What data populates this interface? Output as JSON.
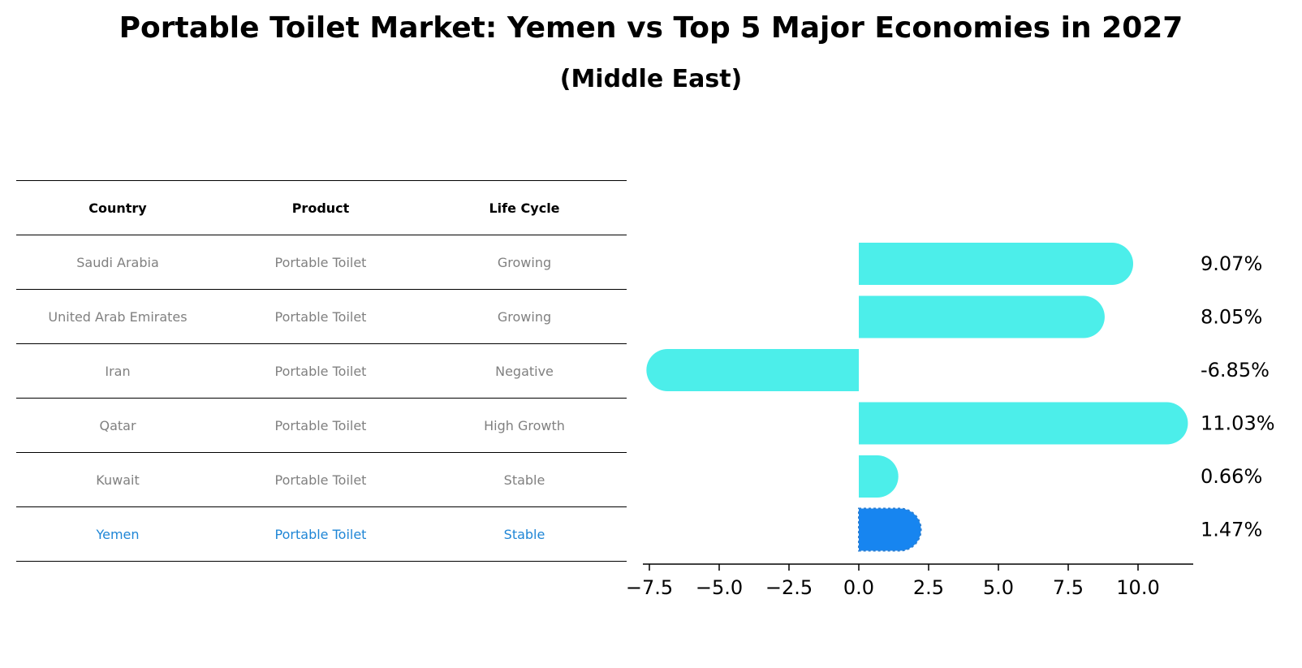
{
  "chart_data": {
    "type": "bar",
    "orientation": "horizontal",
    "title": "Portable Toilet Market: Yemen vs Top 5 Major Economies in 2027",
    "subtitle": "(Middle East)",
    "table": {
      "columns": [
        "Country",
        "Product",
        "Life Cycle"
      ],
      "rows": [
        [
          "Saudi Arabia",
          "Portable Toilet",
          "Growing"
        ],
        [
          "United Arab Emirates",
          "Portable Toilet",
          "Growing"
        ],
        [
          "Iran",
          "Portable Toilet",
          "Negative"
        ],
        [
          "Qatar",
          "Portable Toilet",
          "High Growth"
        ],
        [
          "Kuwait",
          "Portable Toilet",
          "Stable"
        ],
        [
          "Yemen",
          "Portable Toilet",
          "Stable"
        ]
      ],
      "highlight_row": 5
    },
    "categories": [
      "Saudi Arabia",
      "United Arab Emirates",
      "Iran",
      "Qatar",
      "Kuwait",
      "Yemen"
    ],
    "values": [
      9.07,
      8.05,
      -6.85,
      11.03,
      0.66,
      1.47
    ],
    "value_labels": [
      "9.07%",
      "8.05%",
      "-6.85%",
      "11.03%",
      "0.66%",
      "1.47%"
    ],
    "xlim": [
      -7.5,
      12
    ],
    "xticks": [
      -7.5,
      -5.0,
      -2.5,
      0.0,
      2.5,
      5.0,
      7.5,
      10.0
    ],
    "xtick_labels": [
      "−7.5",
      "−5.0",
      "−2.5",
      "0.0",
      "2.5",
      "5.0",
      "7.5",
      "10.0"
    ],
    "colors": {
      "default": "#4ceeea",
      "highlight": "#1785f0",
      "highlight_text": "#1f86d6",
      "table_text": "#808080"
    }
  }
}
